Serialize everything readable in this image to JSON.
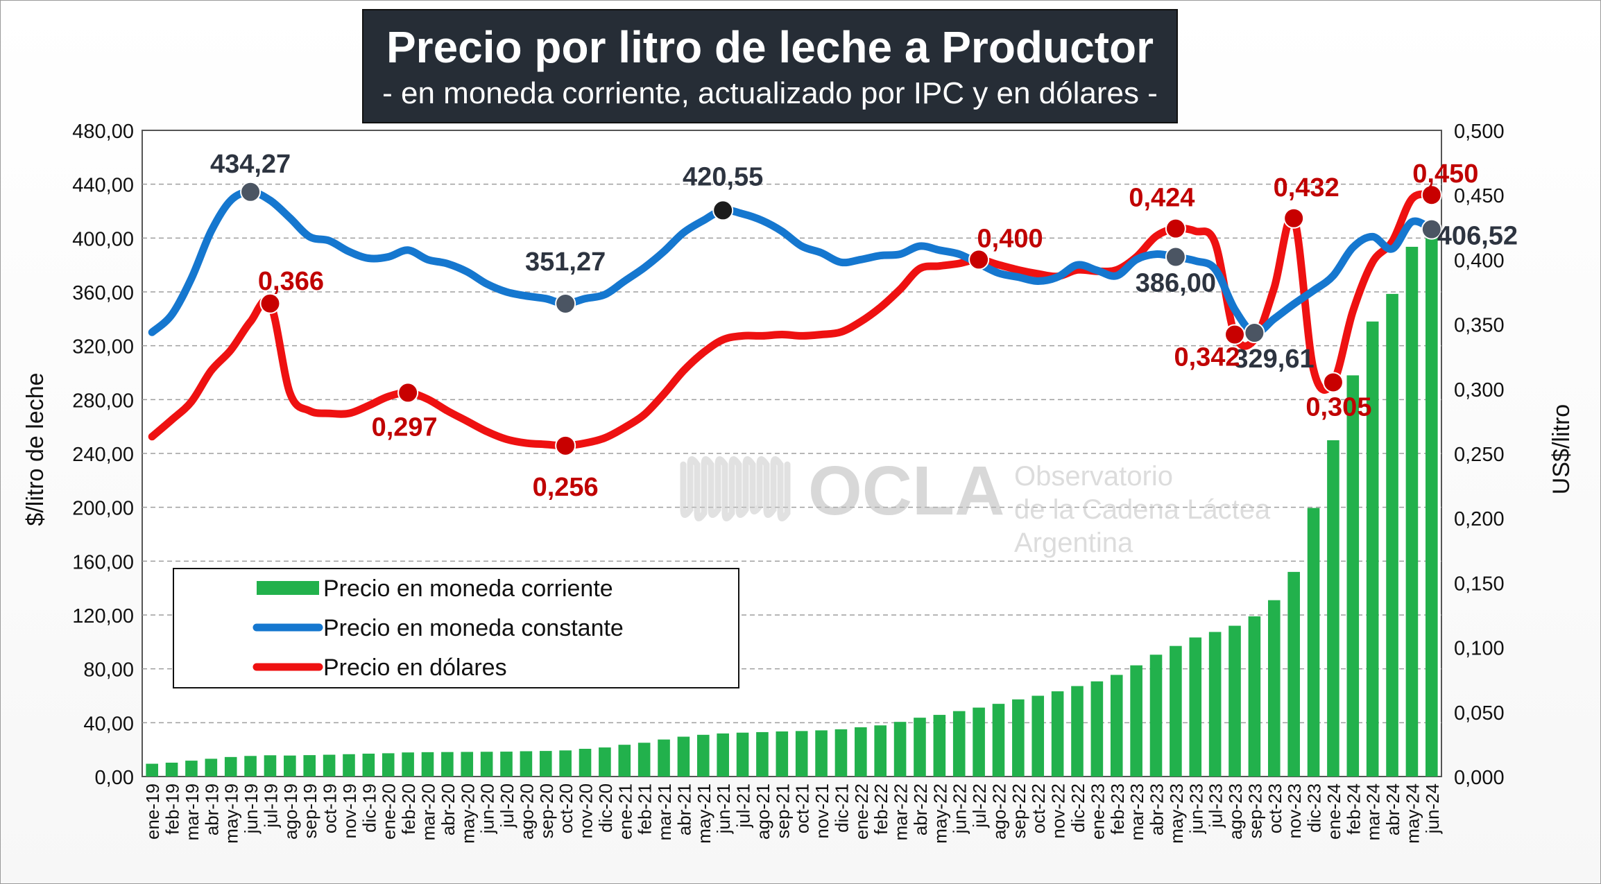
{
  "title": "Precio por litro de leche a Productor",
  "subtitle": "- en moneda corriente, actualizado por IPC y en dólares -",
  "watermark": {
    "name": "OCLA",
    "line1": "Observatorio",
    "line2": "de la Cadena Láctea",
    "line3": "Argentina"
  },
  "chart_data": {
    "type": "bar+line",
    "ylabel_left": "$/litro de leche",
    "ylabel_right": "US$/litro",
    "ylim_left": [
      0,
      480
    ],
    "ylim_right": [
      0,
      0.5
    ],
    "left_ticks": [
      "0,00",
      "40,00",
      "80,00",
      "120,00",
      "160,00",
      "200,00",
      "240,00",
      "280,00",
      "320,00",
      "360,00",
      "400,00",
      "440,00",
      "480,00"
    ],
    "right_ticks": [
      "0,000",
      "0,050",
      "0,100",
      "0,150",
      "0,200",
      "0,250",
      "0,300",
      "0,350",
      "0,400",
      "0,450",
      "0,500"
    ],
    "grid": true,
    "legend_position": "bottom-left",
    "categories": [
      "ene-19",
      "feb-19",
      "mar-19",
      "abr-19",
      "may-19",
      "jun-19",
      "jul-19",
      "ago-19",
      "sep-19",
      "oct-19",
      "nov-19",
      "dic-19",
      "ene-20",
      "feb-20",
      "mar-20",
      "abr-20",
      "may-20",
      "jun-20",
      "jul-20",
      "ago-20",
      "sep-20",
      "oct-20",
      "nov-20",
      "dic-20",
      "ene-21",
      "feb-21",
      "mar-21",
      "abr-21",
      "may-21",
      "jun-21",
      "jul-21",
      "ago-21",
      "sep-21",
      "oct-21",
      "nov-21",
      "dic-21",
      "ene-22",
      "feb-22",
      "mar-22",
      "abr-22",
      "may-22",
      "jun-22",
      "jul-22",
      "ago-22",
      "sep-22",
      "oct-22",
      "nov-22",
      "dic-22",
      "ene-23",
      "feb-23",
      "mar-23",
      "abr-23",
      "may-23",
      "jun-23",
      "jul-23",
      "ago-23",
      "sep-23",
      "oct-23",
      "nov-23",
      "dic-23",
      "ene-24",
      "feb-24",
      "mar-24",
      "abr-24",
      "may-24",
      "jun-24"
    ],
    "series": [
      {
        "name": "Precio en moneda corriente",
        "type": "bar",
        "axis": "left",
        "color": "#22b14c",
        "values": [
          9.5,
          10.3,
          11.8,
          13.2,
          14.5,
          15.3,
          15.8,
          15.6,
          15.9,
          16.2,
          16.6,
          17.0,
          17.3,
          17.9,
          18.1,
          18.2,
          18.3,
          18.4,
          18.5,
          18.8,
          19.0,
          19.4,
          20.6,
          21.6,
          23.6,
          25.1,
          27.5,
          29.6,
          31.0,
          32.0,
          32.6,
          33.0,
          33.5,
          33.8,
          34.3,
          35.1,
          36.6,
          38.0,
          40.6,
          43.7,
          45.8,
          48.6,
          51.2,
          54.0,
          57.3,
          60.0,
          63.3,
          67.2,
          70.7,
          75.5,
          82.6,
          90.5,
          97.0,
          103.3,
          107.4,
          112.0,
          119.0,
          131.0,
          152.0,
          199.5,
          249.8,
          298.0,
          338.0,
          358.5,
          393.5,
          406.5
        ]
      },
      {
        "name": "Precio en moneda constante",
        "type": "line",
        "axis": "left",
        "color": "#1577cf",
        "values": [
          330,
          343,
          370,
          405,
          428,
          434.27,
          428,
          415,
          401,
          398,
          390,
          385,
          386,
          391,
          384,
          381,
          375,
          366,
          360,
          357,
          355,
          351.27,
          355,
          358,
          368,
          378,
          390,
          404,
          413,
          420.55,
          418,
          413,
          405,
          394,
          389,
          382,
          384,
          387,
          388,
          394,
          391,
          388,
          381,
          374,
          371,
          368,
          371,
          380,
          376,
          372,
          384,
          388,
          386.0,
          383,
          377,
          347,
          329.61,
          340,
          351,
          361,
          372,
          393,
          401,
          392,
          412,
          406.52
        ]
      },
      {
        "name": "Precio en dólares",
        "type": "line",
        "axis": "right",
        "color": "#ee1111",
        "values": [
          0.263,
          0.276,
          0.29,
          0.314,
          0.33,
          0.352,
          0.366,
          0.297,
          0.283,
          0.281,
          0.281,
          0.287,
          0.294,
          0.297,
          0.292,
          0.283,
          0.275,
          0.267,
          0.261,
          0.258,
          0.257,
          0.256,
          0.258,
          0.262,
          0.27,
          0.28,
          0.296,
          0.314,
          0.328,
          0.338,
          0.341,
          0.341,
          0.342,
          0.341,
          0.342,
          0.344,
          0.352,
          0.363,
          0.377,
          0.393,
          0.395,
          0.397,
          0.4,
          0.396,
          0.392,
          0.389,
          0.387,
          0.392,
          0.391,
          0.392,
          0.402,
          0.418,
          0.424,
          0.422,
          0.413,
          0.342,
          0.338,
          0.378,
          0.432,
          0.315,
          0.305,
          0.36,
          0.398,
          0.414,
          0.447,
          0.45
        ]
      }
    ],
    "annotations_constante": [
      {
        "index": 5,
        "label": "434,27"
      },
      {
        "index": 21,
        "label": "351,27"
      },
      {
        "index": 29,
        "label": "420,55"
      },
      {
        "index": 52,
        "label": "386,00"
      },
      {
        "index": 56,
        "label": "329,61"
      },
      {
        "index": 65,
        "label": "406,52"
      }
    ],
    "annotations_dolares": [
      {
        "index": 6,
        "label": "0,366"
      },
      {
        "index": 13,
        "label": "0,297"
      },
      {
        "index": 21,
        "label": "0,256"
      },
      {
        "index": 42,
        "label": "0,400"
      },
      {
        "index": 52,
        "label": "0,424"
      },
      {
        "index": 55,
        "label": "0,342"
      },
      {
        "index": 58,
        "label": "0,432"
      },
      {
        "index": 60,
        "label": "0,305"
      },
      {
        "index": 65,
        "label": "0,450"
      }
    ]
  }
}
